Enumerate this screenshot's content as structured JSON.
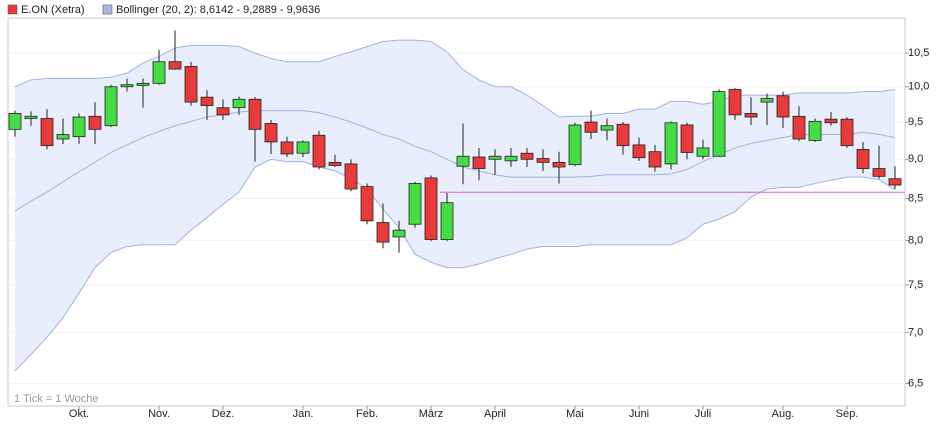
{
  "chart_data": {
    "type": "candlestick",
    "legend": [
      {
        "name": "E.ON (Xetra)",
        "color": "#e83a3a"
      },
      {
        "name": "Bollinger (20, 2): 8,6142 - 9,2889 - 9,9636",
        "color": "#aab8e8"
      }
    ],
    "note": "1 Tick = 1 Woche",
    "categories": [
      null,
      null,
      null,
      null,
      "Okt.",
      null,
      null,
      null,
      null,
      "Nov.",
      null,
      null,
      null,
      "Dez.",
      null,
      null,
      null,
      null,
      "Jan.",
      null,
      null,
      null,
      "Feb.",
      null,
      null,
      null,
      "März",
      null,
      null,
      null,
      "April",
      null,
      null,
      null,
      null,
      "Mai",
      null,
      null,
      null,
      "Juni",
      null,
      null,
      null,
      "Juli",
      null,
      null,
      null,
      null,
      "Aug.",
      null,
      null,
      null,
      "Sep.",
      null,
      null,
      null
    ],
    "open": [
      9.4,
      9.55,
      9.55,
      9.27,
      9.3,
      9.58,
      9.45,
      10.0,
      10.02,
      10.05,
      10.37,
      10.3,
      9.85,
      9.7,
      9.7,
      9.82,
      9.48,
      9.23,
      9.08,
      9.32,
      8.96,
      8.94,
      8.65,
      8.21,
      8.04,
      8.19,
      8.76,
      8.01,
      8.91,
      9.03,
      9.0,
      8.98,
      9.08,
      9.01,
      8.96,
      8.93,
      9.5,
      9.39,
      9.47,
      9.19,
      9.1,
      8.94,
      9.46,
      9.04,
      9.04,
      9.96,
      9.62,
      9.78,
      9.87,
      9.58,
      9.25,
      9.54,
      9.54,
      9.13,
      8.88,
      8.75
    ],
    "high": [
      9.66,
      9.65,
      9.68,
      9.55,
      9.62,
      9.78,
      10.03,
      10.12,
      10.12,
      10.55,
      10.85,
      10.37,
      9.95,
      9.82,
      9.86,
      9.85,
      9.53,
      9.3,
      9.25,
      9.38,
      9.06,
      9.0,
      8.69,
      8.44,
      8.23,
      8.71,
      8.79,
      8.57,
      9.48,
      9.15,
      9.13,
      9.15,
      9.15,
      9.13,
      9.1,
      9.49,
      9.66,
      9.55,
      9.5,
      9.29,
      9.19,
      9.51,
      9.49,
      9.26,
      9.96,
      9.98,
      9.85,
      9.9,
      9.93,
      9.72,
      9.55,
      9.64,
      9.57,
      9.23,
      9.18,
      8.91
    ],
    "low": [
      9.3,
      9.45,
      9.13,
      9.2,
      9.2,
      9.2,
      9.43,
      9.93,
      9.7,
      10.03,
      10.25,
      9.73,
      9.53,
      9.53,
      9.6,
      8.97,
      9.07,
      9.03,
      9.03,
      8.87,
      8.9,
      8.59,
      8.19,
      7.91,
      7.86,
      8.15,
      7.99,
      7.99,
      8.68,
      8.73,
      8.8,
      8.9,
      8.9,
      8.85,
      8.69,
      8.91,
      9.27,
      9.25,
      9.06,
      8.98,
      8.84,
      8.87,
      9.0,
      9.0,
      9.03,
      9.53,
      9.46,
      9.46,
      9.42,
      9.24,
      9.23,
      9.45,
      9.15,
      8.82,
      8.75,
      8.62
    ],
    "close": [
      9.62,
      9.58,
      9.18,
      9.33,
      9.57,
      9.4,
      10.0,
      10.03,
      10.05,
      10.37,
      10.26,
      9.78,
      9.73,
      9.6,
      9.82,
      9.4,
      9.23,
      9.07,
      9.23,
      8.9,
      8.92,
      8.62,
      8.23,
      7.98,
      8.12,
      8.69,
      8.01,
      8.45,
      9.04,
      8.88,
      9.04,
      9.04,
      9.0,
      8.96,
      8.9,
      9.46,
      9.36,
      9.45,
      9.18,
      9.02,
      8.9,
      9.49,
      9.09,
      9.15,
      9.93,
      9.6,
      9.57,
      9.83,
      9.57,
      9.27,
      9.51,
      9.49,
      9.18,
      8.88,
      8.78,
      8.67
    ],
    "up_color": "#44dd44",
    "down_color": "#e83a3a",
    "bollinger": {
      "upper": [
        10.0,
        10.1,
        10.12,
        10.12,
        10.12,
        10.12,
        10.14,
        10.2,
        10.35,
        10.45,
        10.58,
        10.62,
        10.62,
        10.62,
        10.6,
        10.5,
        10.42,
        10.37,
        10.37,
        10.37,
        10.45,
        10.52,
        10.6,
        10.68,
        10.7,
        10.7,
        10.68,
        10.52,
        10.25,
        10.1,
        10.0,
        10.0,
        9.88,
        9.73,
        9.57,
        9.58,
        9.58,
        9.62,
        9.62,
        9.68,
        9.68,
        9.79,
        9.79,
        9.75,
        9.79,
        9.88,
        9.88,
        9.88,
        9.88,
        9.91,
        9.91,
        9.91,
        9.91,
        9.93,
        9.93,
        9.96
      ],
      "middle": [
        8.35,
        8.47,
        8.58,
        8.71,
        8.84,
        8.96,
        9.09,
        9.19,
        9.29,
        9.37,
        9.45,
        9.51,
        9.57,
        9.6,
        9.64,
        9.66,
        9.66,
        9.66,
        9.66,
        9.63,
        9.57,
        9.5,
        9.42,
        9.33,
        9.27,
        9.17,
        9.1,
        9.0,
        8.9,
        8.85,
        8.8,
        8.77,
        8.77,
        8.77,
        8.77,
        8.77,
        8.78,
        8.8,
        8.8,
        8.8,
        8.8,
        8.81,
        8.87,
        8.97,
        9.06,
        9.15,
        9.21,
        9.25,
        9.29,
        9.33,
        9.33,
        9.33,
        9.33,
        9.36,
        9.33,
        9.29
      ],
      "lower": [
        6.62,
        6.78,
        6.95,
        7.15,
        7.41,
        7.69,
        7.86,
        7.93,
        7.95,
        7.95,
        7.95,
        8.12,
        8.27,
        8.43,
        8.58,
        8.9,
        9.0,
        8.97,
        8.97,
        8.9,
        8.85,
        8.75,
        8.62,
        8.37,
        8.15,
        7.84,
        7.75,
        7.69,
        7.69,
        7.73,
        7.79,
        7.84,
        7.9,
        7.93,
        7.93,
        7.93,
        7.95,
        7.95,
        7.95,
        7.95,
        7.95,
        7.95,
        8.03,
        8.19,
        8.25,
        8.34,
        8.52,
        8.62,
        8.64,
        8.64,
        8.69,
        8.73,
        8.77,
        8.77,
        8.74,
        8.61
      ],
      "fill": "#e8eefc",
      "line_color": "#9fb2e0"
    },
    "hline": {
      "value": 8.58,
      "color": "#e060d8"
    },
    "log_scale": true,
    "ylim": [
      6.29,
      11.05
    ],
    "yticks": [
      {
        "value": 6.5,
        "label": "6,5"
      },
      {
        "value": 7,
        "label": "7,0"
      },
      {
        "value": 7.5,
        "label": "7,5"
      },
      {
        "value": 8,
        "label": "8,0"
      },
      {
        "value": 8.5,
        "label": "8,5"
      },
      {
        "value": 9,
        "label": "9,0"
      },
      {
        "value": 9.5,
        "label": "9,5"
      },
      {
        "value": 10,
        "label": "10,0"
      },
      {
        "value": 10.5,
        "label": "10,5"
      }
    ],
    "grid": true
  }
}
